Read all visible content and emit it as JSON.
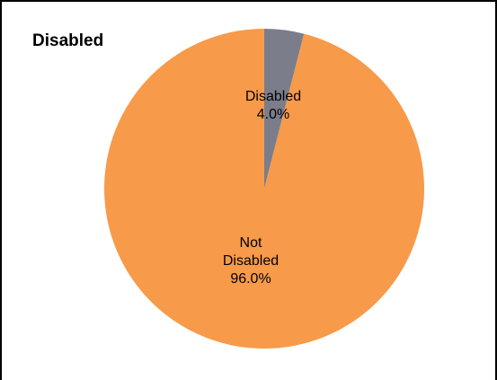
{
  "chart_data": {
    "type": "pie",
    "title": "Disabled",
    "slices": [
      {
        "label": "Disabled",
        "value": 4.0,
        "display": "4.0%",
        "color": "#7b7d8b"
      },
      {
        "label": "Not Disabled",
        "value": 96.0,
        "display": "96.0%",
        "color": "#f79a4a"
      }
    ],
    "start_angle": "12 o'clock",
    "direction": "clockwise",
    "legend": "none"
  }
}
